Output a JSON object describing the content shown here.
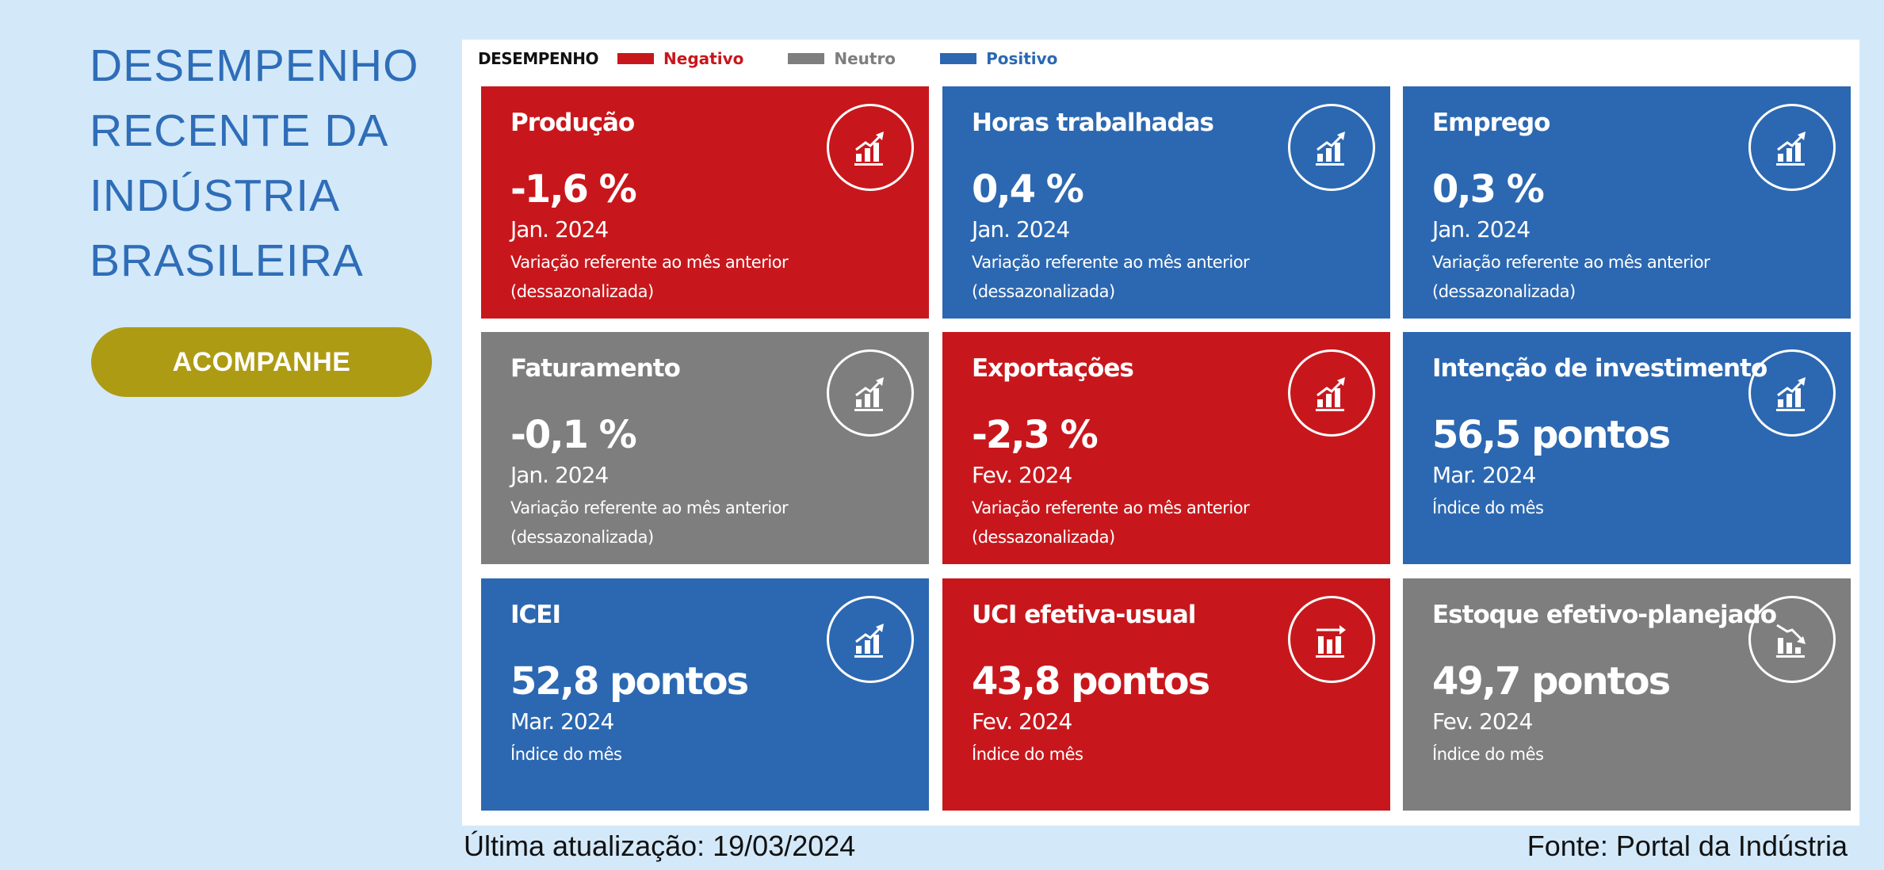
{
  "title": {
    "lines": [
      "DESEMPENHO",
      "RECENTE DA",
      "INDÚSTRIA",
      "BRASILEIRA"
    ]
  },
  "cta": {
    "label": "ACOMPANHE"
  },
  "colors": {
    "negativo": "#c8171c",
    "neutro": "#7e7e7e",
    "positivo": "#2c68b1",
    "cta": "#ae9b14",
    "title": "#2f6db8",
    "background": "#d3e9f9"
  },
  "legend": {
    "title": "DESEMPENHO",
    "items": [
      {
        "label": "Negativo",
        "color": "#c8171c"
      },
      {
        "label": "Neutro",
        "color": "#7e7e7e"
      },
      {
        "label": "Positivo",
        "color": "#2c68b1"
      }
    ]
  },
  "cards": [
    {
      "title": "Produção",
      "value": "-1,6 %",
      "date": "Jan. 2024",
      "note": "Variação referente ao mês anterior (dessazonalizada)",
      "status": "negativo",
      "icon": "bar-chart-up-icon"
    },
    {
      "title": "Horas trabalhadas",
      "value": "0,4 %",
      "date": "Jan. 2024",
      "note": "Variação referente ao mês anterior (dessazonalizada)",
      "status": "positivo",
      "icon": "bar-chart-up-icon"
    },
    {
      "title": "Emprego",
      "value": "0,3 %",
      "date": "Jan. 2024",
      "note": "Variação referente ao mês anterior (dessazonalizada)",
      "status": "positivo",
      "icon": "bar-chart-up-icon"
    },
    {
      "title": "Faturamento",
      "value": "-0,1 %",
      "date": "Jan. 2024",
      "note": "Variação referente ao mês anterior (dessazonalizada)",
      "status": "neutro",
      "icon": "bar-chart-up-icon"
    },
    {
      "title": "Exportações",
      "value": "-2,3 %",
      "date": "Fev. 2024",
      "note": "Variação referente ao mês anterior (dessazonalizada)",
      "status": "negativo",
      "icon": "bar-chart-up-icon"
    },
    {
      "title": "Intenção de investimento",
      "value": "56,5 pontos",
      "date": "Mar. 2024",
      "note": "Índice do mês",
      "status": "positivo",
      "icon": "bar-chart-up-icon"
    },
    {
      "title": "ICEI",
      "value": "52,8 pontos",
      "date": "Mar. 2024",
      "note": "Índice do mês",
      "status": "positivo",
      "icon": "bar-chart-up-icon"
    },
    {
      "title": "UCI efetiva-usual",
      "value": "43,8 pontos",
      "date": "Fev. 2024",
      "note": "Índice do mês",
      "status": "negativo",
      "icon": "bar-chart-flat-icon"
    },
    {
      "title": "Estoque efetivo-planejado",
      "value": "49,7 pontos",
      "date": "Fev. 2024",
      "note": "Índice do mês",
      "status": "neutro",
      "icon": "bar-chart-down-icon"
    }
  ],
  "footer": {
    "updated": "Última atualização: 19/03/2024",
    "source": "Fonte: Portal da Indústria"
  }
}
